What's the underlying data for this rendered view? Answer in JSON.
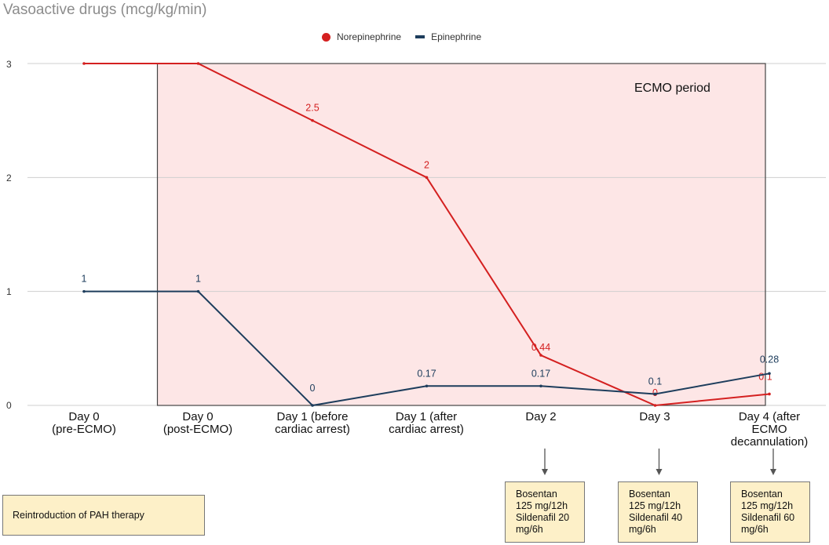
{
  "chart_data": {
    "type": "line",
    "title": "Vasoactive drugs (mcg/kg/min)",
    "categories": [
      "Day 0\n(pre-ECMO)",
      "Day 0\n(post-ECMO)",
      "Day 1 (before\ncardiac arrest)",
      "Day 1 (after\ncardiac arrest)",
      "Day 2",
      "Day 3",
      "Day 4 (after\nECMO\ndecannulation)"
    ],
    "ylim": [
      0,
      3
    ],
    "yticks": [
      "0",
      "1",
      "2",
      "3"
    ],
    "grid": true,
    "legend_position": "top-center",
    "series": [
      {
        "name": "Norepinephrine",
        "color": "#d42020",
        "values": [
          3,
          3,
          2.5,
          2,
          0.44,
          0,
          0.1
        ],
        "labels": [
          "",
          "",
          "2.5",
          "2",
          "0.44",
          "0",
          "0.1"
        ]
      },
      {
        "name": "Epinephrine",
        "color": "#1d3d5c",
        "values": [
          1,
          1,
          0,
          0.17,
          0.17,
          0.1,
          0.28
        ],
        "labels": [
          "1",
          "1",
          "0",
          "0.17",
          "0.17",
          "0.1",
          "0.28"
        ]
      }
    ],
    "annotations": {
      "ecmo_period": {
        "label": "ECMO period",
        "from_category": 1,
        "to_category": 6,
        "color": "#fde6e6"
      },
      "therapy_boxes": [
        {
          "category": 4,
          "text": "Bosentan\n125 mg/12h\nSildenafil 20\nmg/6h"
        },
        {
          "category": 5,
          "text": "Bosentan\n125 mg/12h\nSildenafil 40\nmg/6h"
        },
        {
          "category": 6,
          "text": "Bosentan\n125 mg/12h\nSildenafil 60\nmg/6h"
        }
      ],
      "pah_label": "Reintroduction of PAH therapy"
    }
  }
}
